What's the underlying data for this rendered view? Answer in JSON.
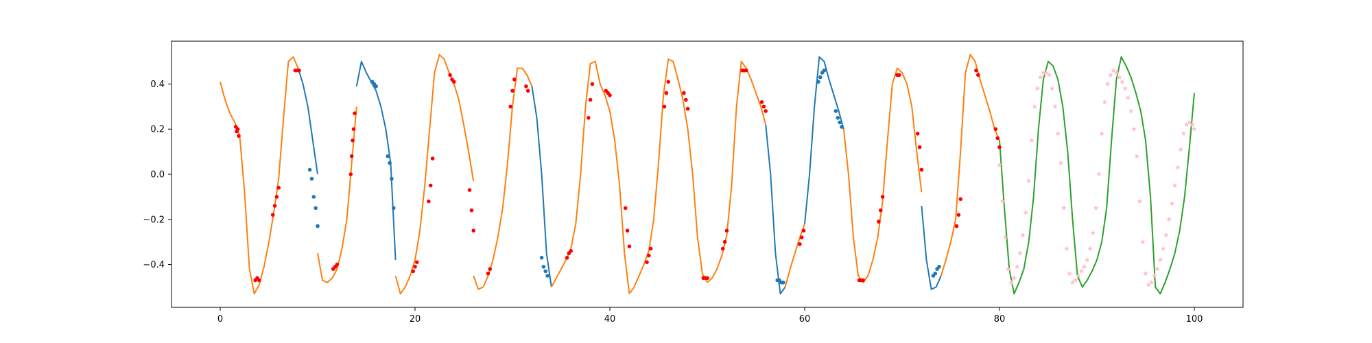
{
  "chart_data": {
    "type": "line",
    "title": "",
    "xlabel": "",
    "ylabel": "",
    "xlim": [
      -5,
      105
    ],
    "ylim": [
      -0.59,
      0.59
    ],
    "x_ticks": [
      0,
      20,
      40,
      60,
      80,
      100
    ],
    "x_tick_labels": [
      "0",
      "20",
      "40",
      "60",
      "80",
      "100"
    ],
    "y_ticks": [
      -0.4,
      -0.2,
      0.0,
      0.2,
      0.4
    ],
    "y_tick_labels": [
      "−0.4",
      "−0.2",
      "0.0",
      "0.2",
      "0.4"
    ],
    "grid": false,
    "legend": false,
    "colors": {
      "orange": "#ff7f0e",
      "blue": "#1f77b4",
      "green": "#2ca02c",
      "red": "#ff0000",
      "pink": "#ffc0cb"
    },
    "series": [
      {
        "color": "orange",
        "x_start": 0,
        "x_end": 8,
        "x": [
          0,
          0.5,
          1,
          1.5,
          2,
          2.5,
          3,
          3.5,
          4,
          4.5,
          5,
          5.5,
          6,
          6.5,
          7,
          7.5,
          8
        ],
        "y": [
          0.41,
          0.33,
          0.27,
          0.23,
          0.17,
          -0.08,
          -0.42,
          -0.53,
          -0.49,
          -0.41,
          -0.3,
          -0.17,
          -0.02,
          0.25,
          0.5,
          0.52,
          0.47
        ]
      },
      {
        "color": "blue",
        "x_start": 8,
        "x_end": 10,
        "x": [
          8,
          8.5,
          9,
          9.5,
          10
        ],
        "y": [
          0.47,
          0.4,
          0.3,
          0.15,
          0.0
        ]
      },
      {
        "color": "orange",
        "x_start": 10,
        "x_end": 14,
        "x": [
          10,
          10.5,
          11,
          11.5,
          12,
          12.5,
          13,
          13.5,
          14
        ],
        "y": [
          -0.35,
          -0.47,
          -0.48,
          -0.46,
          -0.42,
          -0.33,
          -0.2,
          0.05,
          0.3
        ]
      },
      {
        "color": "blue",
        "x_start": 14,
        "x_end": 18,
        "x": [
          14,
          14.5,
          15,
          15.5,
          16,
          16.5,
          17,
          17.5,
          18
        ],
        "y": [
          0.39,
          0.5,
          0.45,
          0.41,
          0.37,
          0.3,
          0.2,
          0.05,
          -0.38
        ]
      },
      {
        "color": "orange",
        "x_start": 18,
        "x_end": 26,
        "x": [
          18,
          18.5,
          19,
          19.5,
          20,
          20.5,
          21,
          21.5,
          22,
          22.5,
          23,
          23.5,
          24,
          24.5,
          25,
          25.5,
          26
        ],
        "y": [
          -0.45,
          -0.53,
          -0.5,
          -0.45,
          -0.38,
          -0.25,
          -0.05,
          0.2,
          0.45,
          0.53,
          0.51,
          0.45,
          0.4,
          0.33,
          0.22,
          0.1,
          -0.03
        ]
      },
      {
        "color": "orange",
        "x_start": 26,
        "x_end": 32,
        "x": [
          26,
          26.5,
          27,
          27.5,
          28,
          28.5,
          29,
          29.5,
          30,
          30.5,
          31,
          31.5,
          32
        ],
        "y": [
          -0.45,
          -0.51,
          -0.5,
          -0.45,
          -0.38,
          -0.28,
          -0.15,
          0.05,
          0.3,
          0.47,
          0.47,
          0.44,
          0.39
        ]
      },
      {
        "color": "blue",
        "x_start": 32,
        "x_end": 34,
        "x": [
          32,
          32.5,
          33,
          33.5,
          34
        ],
        "y": [
          0.39,
          0.25,
          0.0,
          -0.35,
          -0.5
        ]
      },
      {
        "color": "orange",
        "x_start": 34,
        "x_end": 42,
        "x": [
          34,
          34.5,
          35,
          35.5,
          36,
          36.5,
          37,
          37.5,
          38,
          38.5,
          39,
          39.5,
          40,
          40.5,
          41,
          41.5,
          42
        ],
        "y": [
          -0.5,
          -0.46,
          -0.42,
          -0.38,
          -0.33,
          -0.22,
          0.0,
          0.3,
          0.49,
          0.5,
          0.4,
          0.35,
          0.28,
          0.15,
          -0.05,
          -0.35,
          -0.53
        ]
      },
      {
        "color": "orange",
        "x_start": 42,
        "x_end": 50,
        "x": [
          42,
          42.5,
          43,
          43.5,
          44,
          44.5,
          45,
          45.5,
          46,
          46.5,
          47,
          47.5,
          48,
          48.5,
          49,
          49.5,
          50
        ],
        "y": [
          -0.53,
          -0.5,
          -0.45,
          -0.4,
          -0.34,
          -0.2,
          0.05,
          0.35,
          0.51,
          0.5,
          0.42,
          0.33,
          0.2,
          0.0,
          -0.28,
          -0.44,
          -0.48
        ]
      },
      {
        "color": "orange",
        "x_start": 50,
        "x_end": 56,
        "x": [
          50,
          50.5,
          51,
          51.5,
          52,
          52.5,
          53,
          53.5,
          54,
          54.5,
          55,
          55.5,
          56
        ],
        "y": [
          -0.48,
          -0.46,
          -0.42,
          -0.36,
          -0.27,
          -0.05,
          0.3,
          0.5,
          0.47,
          0.42,
          0.36,
          0.3,
          0.22
        ]
      },
      {
        "color": "blue",
        "x_start": 56,
        "x_end": 58,
        "x": [
          56,
          56.5,
          57,
          57.5,
          58
        ],
        "y": [
          0.22,
          0.0,
          -0.35,
          -0.53,
          -0.5
        ]
      },
      {
        "color": "orange",
        "x_start": 58,
        "x_end": 60,
        "x": [
          58,
          58.5,
          59,
          59.5,
          60
        ],
        "y": [
          -0.5,
          -0.42,
          -0.35,
          -0.28,
          -0.22
        ]
      },
      {
        "color": "blue",
        "x_start": 60,
        "x_end": 64,
        "x": [
          60,
          60.5,
          61,
          61.5,
          62,
          62.5,
          63,
          63.5,
          64
        ],
        "y": [
          -0.22,
          0.0,
          0.3,
          0.52,
          0.5,
          0.42,
          0.35,
          0.28,
          0.2
        ]
      },
      {
        "color": "orange",
        "x_start": 64,
        "x_end": 72,
        "x": [
          64,
          64.5,
          65,
          65.5,
          66,
          66.5,
          67,
          67.5,
          68,
          68.5,
          69,
          69.5,
          70,
          70.5,
          71,
          71.5,
          72
        ],
        "y": [
          0.2,
          0.0,
          -0.28,
          -0.45,
          -0.48,
          -0.45,
          -0.38,
          -0.28,
          -0.12,
          0.15,
          0.4,
          0.47,
          0.45,
          0.4,
          0.3,
          0.1,
          -0.08
        ]
      },
      {
        "color": "blue",
        "x_start": 72,
        "x_end": 74,
        "x": [
          72,
          72.5,
          73,
          73.5,
          74
        ],
        "y": [
          -0.14,
          -0.38,
          -0.51,
          -0.5,
          -0.45
        ]
      },
      {
        "color": "orange",
        "x_start": 74,
        "x_end": 80,
        "x": [
          74,
          74.5,
          75,
          75.5,
          76,
          76.5,
          77,
          77.5,
          78,
          78.5,
          79,
          79.5,
          80
        ],
        "y": [
          -0.45,
          -0.38,
          -0.3,
          -0.2,
          0.1,
          0.45,
          0.53,
          0.5,
          0.42,
          0.35,
          0.28,
          0.2,
          0.15
        ]
      },
      {
        "color": "green",
        "x_start": 80,
        "x_end": 100,
        "x": [
          80,
          80.5,
          81,
          81.5,
          82,
          82.5,
          83,
          83.5,
          84,
          84.5,
          85,
          85.5,
          86,
          86.5,
          87,
          87.5,
          88,
          88.5,
          89,
          89.5,
          90,
          90.5,
          91,
          91.5,
          92,
          92.5,
          93,
          93.5,
          94,
          94.5,
          95,
          95.5,
          96,
          96.5,
          97,
          97.5,
          98,
          98.5,
          99,
          99.5,
          100
        ],
        "y": [
          0.15,
          -0.15,
          -0.42,
          -0.53,
          -0.48,
          -0.42,
          -0.3,
          -0.1,
          0.2,
          0.42,
          0.5,
          0.48,
          0.42,
          0.3,
          0.1,
          -0.2,
          -0.45,
          -0.5,
          -0.47,
          -0.43,
          -0.38,
          -0.3,
          -0.15,
          0.15,
          0.42,
          0.52,
          0.48,
          0.43,
          0.36,
          0.28,
          0.15,
          -0.1,
          -0.5,
          -0.53,
          -0.48,
          -0.42,
          -0.35,
          -0.25,
          -0.1,
          0.12,
          0.36
        ]
      }
    ],
    "markers": {
      "red": {
        "x": [
          1.6,
          1.7,
          1.8,
          1.9,
          3.6,
          3.8,
          4.0,
          5.4,
          5.6,
          5.8,
          6.0,
          7.7,
          7.9,
          8.1,
          11.6,
          11.8,
          12.0,
          13.4,
          13.5,
          13.6,
          13.7,
          13.8,
          19.8,
          20.0,
          20.2,
          21.4,
          21.6,
          21.8,
          23.6,
          23.8,
          24.0,
          25.6,
          25.8,
          26.0,
          27.5,
          27.7,
          29.8,
          30.0,
          30.2,
          31.4,
          31.6,
          35.6,
          35.8,
          36.0,
          37.8,
          38.0,
          38.2,
          39.6,
          39.8,
          40.0,
          41.6,
          41.8,
          42.0,
          43.8,
          44.0,
          44.2,
          45.6,
          45.8,
          46.0,
          47.6,
          47.8,
          48.0,
          49.6,
          49.8,
          50.0,
          51.6,
          51.8,
          52.0,
          53.6,
          53.8,
          54.0,
          55.6,
          55.8,
          56.0,
          59.5,
          59.7,
          59.9,
          65.6,
          65.8,
          66.0,
          67.6,
          67.8,
          68.0,
          69.5,
          69.7,
          71.6,
          71.8,
          72.0,
          75.6,
          75.8,
          76.0,
          77.6,
          77.8,
          79.6,
          79.8,
          80.0
        ],
        "y": [
          0.21,
          0.19,
          0.2,
          0.17,
          -0.47,
          -0.46,
          -0.47,
          -0.18,
          -0.14,
          -0.1,
          -0.06,
          0.46,
          0.46,
          0.46,
          -0.42,
          -0.41,
          -0.4,
          0.0,
          0.08,
          0.15,
          0.2,
          0.27,
          -0.43,
          -0.41,
          -0.39,
          -0.12,
          -0.05,
          0.07,
          0.44,
          0.42,
          0.41,
          -0.07,
          -0.16,
          -0.25,
          -0.44,
          -0.42,
          0.3,
          0.37,
          0.42,
          0.39,
          0.37,
          -0.37,
          -0.35,
          -0.34,
          0.25,
          0.33,
          0.4,
          0.37,
          0.36,
          0.35,
          -0.15,
          -0.25,
          -0.32,
          -0.39,
          -0.36,
          -0.33,
          0.3,
          0.36,
          0.41,
          0.36,
          0.33,
          0.29,
          -0.46,
          -0.46,
          -0.46,
          -0.33,
          -0.3,
          -0.25,
          0.46,
          0.46,
          0.46,
          0.32,
          0.3,
          0.28,
          -0.31,
          -0.28,
          -0.25,
          -0.47,
          -0.47,
          -0.47,
          -0.21,
          -0.16,
          -0.1,
          0.44,
          0.44,
          0.18,
          0.12,
          0.02,
          -0.23,
          -0.18,
          -0.11,
          0.46,
          0.44,
          0.2,
          0.16,
          0.12
        ]
      },
      "blue": {
        "x": [
          9.2,
          9.4,
          9.6,
          9.8,
          10.0,
          15.6,
          15.8,
          16.0,
          17.2,
          17.4,
          17.6,
          17.8,
          33.0,
          33.2,
          33.4,
          33.6,
          57.2,
          57.4,
          57.6,
          57.8,
          61.4,
          61.6,
          61.8,
          62.0,
          63.2,
          63.4,
          63.6,
          63.8,
          73.2,
          73.4,
          73.6,
          73.8
        ],
        "y": [
          0.02,
          -0.02,
          -0.1,
          -0.15,
          -0.23,
          0.41,
          0.4,
          0.39,
          0.08,
          0.05,
          -0.02,
          -0.15,
          -0.37,
          -0.41,
          -0.43,
          -0.45,
          -0.47,
          -0.47,
          -0.48,
          -0.48,
          0.41,
          0.43,
          0.45,
          0.46,
          0.28,
          0.25,
          0.23,
          0.21,
          -0.45,
          -0.44,
          -0.42,
          -0.41
        ]
      },
      "pink": {
        "x": [
          80.0,
          80.3,
          80.6,
          80.9,
          81.2,
          81.5,
          81.8,
          82.1,
          82.4,
          82.7,
          83.0,
          83.3,
          83.6,
          83.9,
          84.2,
          84.5,
          84.8,
          85.1,
          85.4,
          85.7,
          86.0,
          86.3,
          86.6,
          86.9,
          87.2,
          87.5,
          87.8,
          88.1,
          88.4,
          88.7,
          89.0,
          89.3,
          89.6,
          89.9,
          90.2,
          90.5,
          90.8,
          91.1,
          91.4,
          91.7,
          92.0,
          92.3,
          92.6,
          92.9,
          93.2,
          93.5,
          93.8,
          94.1,
          94.4,
          94.7,
          95.0,
          95.3,
          95.6,
          95.9,
          96.2,
          96.5,
          96.8,
          97.1,
          97.4,
          97.7,
          98.0,
          98.3,
          98.6,
          98.9,
          99.2,
          99.5,
          99.8,
          100.0
        ],
        "y": [
          0.04,
          -0.12,
          -0.28,
          -0.42,
          -0.48,
          -0.46,
          -0.41,
          -0.35,
          -0.27,
          -0.17,
          -0.03,
          0.15,
          0.3,
          0.38,
          0.43,
          0.45,
          0.45,
          0.44,
          0.38,
          0.3,
          0.18,
          0.05,
          -0.15,
          -0.33,
          -0.44,
          -0.48,
          -0.47,
          -0.45,
          -0.43,
          -0.41,
          -0.38,
          -0.33,
          -0.26,
          -0.15,
          0.0,
          0.18,
          0.32,
          0.4,
          0.44,
          0.46,
          0.45,
          0.43,
          0.41,
          0.38,
          0.34,
          0.28,
          0.2,
          0.08,
          -0.12,
          -0.3,
          -0.44,
          -0.49,
          -0.48,
          -0.45,
          -0.42,
          -0.38,
          -0.33,
          -0.27,
          -0.2,
          -0.13,
          -0.05,
          0.03,
          0.11,
          0.18,
          0.22,
          0.23,
          0.22,
          0.2
        ]
      }
    }
  }
}
